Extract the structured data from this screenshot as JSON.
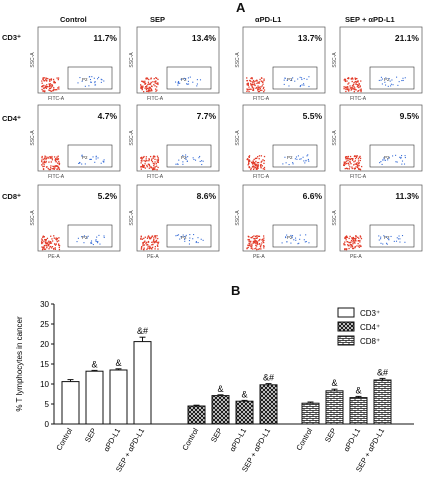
{
  "panel_a_label": "A",
  "panel_b_label": "B",
  "flow": {
    "columns": [
      "Control",
      "SEP",
      "αPD-L1",
      "SEP + αPD-L1"
    ],
    "rows": [
      {
        "label": "CD3⁺",
        "x_axis": "FITC-A",
        "y_axis": "SSC-A",
        "gate": "P2",
        "percents": [
          "11.7%",
          "13.4%",
          "13.7%",
          "21.1%"
        ]
      },
      {
        "label": "CD4⁺",
        "x_axis": "FITC-A",
        "y_axis": "SSC-A",
        "gate": "P2",
        "percents": [
          "4.7%",
          "7.7%",
          "5.5%",
          "9.5%"
        ]
      },
      {
        "label": "CD8⁺",
        "x_axis": "PE-A",
        "y_axis": "SSC-A",
        "gate": "P2",
        "percents": [
          "5.2%",
          "8.6%",
          "6.6%",
          "11.3%"
        ]
      }
    ]
  },
  "chart_data": {
    "type": "bar",
    "ylabel": "% T lymphocytes in cancer",
    "ylim": [
      0,
      30
    ],
    "yticks": [
      0,
      5,
      10,
      15,
      20,
      25,
      30
    ],
    "categories": [
      "Control",
      "SEP",
      "αPD-L1",
      "SEP + αPD-L1"
    ],
    "legend_position": "top-right",
    "series": [
      {
        "name": "CD3⁺",
        "pattern": "white",
        "values": [
          10.6,
          13.2,
          13.5,
          20.6
        ],
        "errors": [
          0.5,
          0.2,
          0.3,
          1.1
        ],
        "annotations": [
          "",
          "&",
          "&",
          "&#"
        ]
      },
      {
        "name": "CD4⁺",
        "pattern": "crosshatch",
        "values": [
          4.5,
          7.1,
          5.7,
          9.8
        ],
        "errors": [
          0.2,
          0.2,
          0.2,
          0.3
        ],
        "annotations": [
          "",
          "&",
          "&",
          "&#"
        ]
      },
      {
        "name": "CD8⁺",
        "pattern": "brick",
        "values": [
          5.2,
          8.3,
          6.6,
          11.0
        ],
        "errors": [
          0.3,
          0.4,
          0.3,
          0.4
        ],
        "annotations": [
          "",
          "&",
          "&",
          "&#"
        ]
      }
    ]
  },
  "colors": {
    "dots_red": "#e23a28",
    "dots_blue": "#3a6fd8",
    "frame": "#555555"
  }
}
